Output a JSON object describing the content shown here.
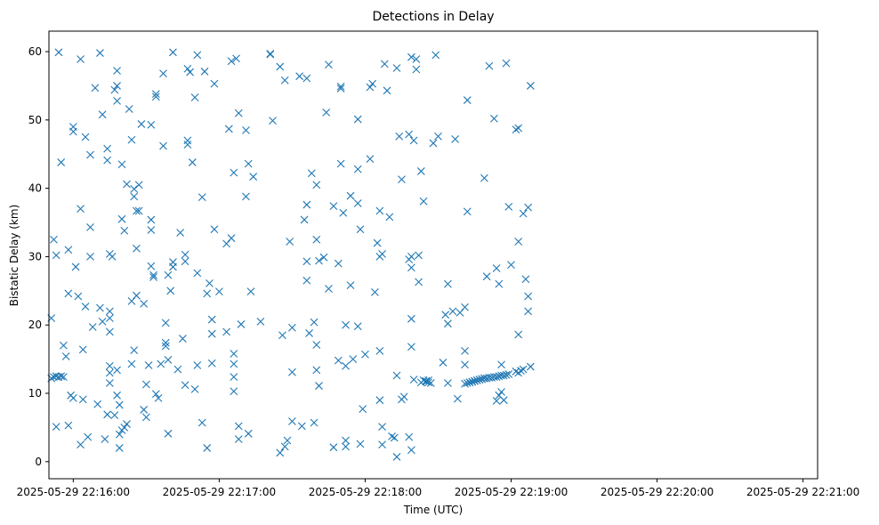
{
  "chart_data": {
    "type": "scatter",
    "title": "Detections in Delay",
    "xlabel": "Time (UTC)",
    "ylabel": "Bistatic Delay (km)",
    "marker": "x",
    "color": "#1f77b4",
    "grid": false,
    "xlim": [
      "2025-05-29 22:15:50",
      "2025-05-29 22:21:06"
    ],
    "ylim": [
      -2.5,
      63
    ],
    "xticks": [
      "2025-05-29 22:16:00",
      "2025-05-29 22:17:00",
      "2025-05-29 22:18:00",
      "2025-05-29 22:19:00",
      "2025-05-29 22:20:00",
      "2025-05-29 22:21:00"
    ],
    "yticks": [
      "0",
      "10",
      "20",
      "30",
      "40",
      "50",
      "60"
    ],
    "points": [
      [
        "22:15:51",
        21
      ],
      [
        "22:15:52",
        32.5
      ],
      [
        "22:15:53",
        30.2
      ],
      [
        "22:15:54",
        59.9
      ],
      [
        "22:15:55",
        43.8
      ],
      [
        "22:15:56",
        17
      ],
      [
        "22:15:57",
        15.4
      ],
      [
        "22:15:58",
        24.6
      ],
      [
        "22:15:58",
        31
      ],
      [
        "22:15:59",
        9.7
      ],
      [
        "22:16:00",
        9.3
      ],
      [
        "22:16:00",
        49
      ],
      [
        "22:16:00",
        48.3
      ],
      [
        "22:16:01",
        28.5
      ],
      [
        "22:16:02",
        24.2
      ],
      [
        "22:16:03",
        37
      ],
      [
        "22:16:03",
        58.9
      ],
      [
        "22:16:04",
        16.4
      ],
      [
        "22:16:04",
        9.1
      ],
      [
        "22:16:05",
        22.7
      ],
      [
        "22:16:05",
        47.5
      ],
      [
        "22:16:06",
        3.6
      ],
      [
        "22:16:07",
        30
      ],
      [
        "22:16:07",
        44.9
      ],
      [
        "22:16:07",
        34.3
      ],
      [
        "22:16:08",
        19.7
      ],
      [
        "22:16:09",
        54.7
      ],
      [
        "22:16:10",
        8.4
      ],
      [
        "22:16:11",
        59.8
      ],
      [
        "22:16:11",
        22.5
      ],
      [
        "22:16:12",
        50.8
      ],
      [
        "22:16:12",
        20.5
      ],
      [
        "22:16:13",
        3.3
      ],
      [
        "22:16:14",
        45.8
      ],
      [
        "22:16:14",
        44.1
      ],
      [
        "22:16:15",
        30.4
      ],
      [
        "22:16:15",
        22
      ],
      [
        "22:16:15",
        21
      ],
      [
        "22:16:15",
        19
      ],
      [
        "22:16:15",
        14
      ],
      [
        "22:16:15",
        13
      ],
      [
        "22:16:15",
        11.5
      ],
      [
        "22:16:16",
        30
      ],
      [
        "22:16:17",
        54.4
      ],
      [
        "22:16:18",
        57.2
      ],
      [
        "22:16:18",
        55
      ],
      [
        "22:16:18",
        52.8
      ],
      [
        "22:16:18",
        9.7
      ],
      [
        "22:16:19",
        2
      ],
      [
        "22:16:19",
        4
      ],
      [
        "22:16:19",
        8.3
      ],
      [
        "22:16:20",
        43.5
      ],
      [
        "22:16:20",
        35.5
      ],
      [
        "22:16:21",
        33.8
      ],
      [
        "22:16:22",
        40.6
      ],
      [
        "22:16:23",
        51.6
      ],
      [
        "22:16:24",
        47.1
      ],
      [
        "22:16:24",
        23.5
      ],
      [
        "22:16:25",
        39.9
      ],
      [
        "22:16:25",
        38.8
      ],
      [
        "22:16:26",
        36.7
      ],
      [
        "22:16:26",
        31.2
      ],
      [
        "22:16:26",
        24.3
      ],
      [
        "22:16:27",
        36.7
      ],
      [
        "22:16:27",
        40.5
      ],
      [
        "22:16:28",
        49.4
      ],
      [
        "22:16:29",
        23.1
      ],
      [
        "22:16:29",
        7.6
      ],
      [
        "22:16:30",
        6.5
      ],
      [
        "22:16:30",
        11.3
      ],
      [
        "22:16:31",
        14.1
      ],
      [
        "22:16:32",
        49.3
      ],
      [
        "22:16:32",
        35.4
      ],
      [
        "22:16:32",
        33.9
      ],
      [
        "22:16:32",
        28.6
      ],
      [
        "22:16:33",
        27.3
      ],
      [
        "22:16:33",
        27
      ],
      [
        "22:16:34",
        9.9
      ],
      [
        "22:16:34",
        53.8
      ],
      [
        "22:16:34",
        53.4
      ],
      [
        "22:16:35",
        9.3
      ],
      [
        "22:16:36",
        14.3
      ],
      [
        "22:16:37",
        46.2
      ],
      [
        "22:16:37",
        56.8
      ],
      [
        "22:16:38",
        17.4
      ],
      [
        "22:16:38",
        16.9
      ],
      [
        "22:16:38",
        20.3
      ],
      [
        "22:16:39",
        4.1
      ],
      [
        "22:16:39",
        14.9
      ],
      [
        "22:16:39",
        27.3
      ],
      [
        "22:16:40",
        25
      ],
      [
        "22:16:41",
        29.2
      ],
      [
        "22:16:41",
        59.9
      ],
      [
        "22:16:41",
        28.5
      ],
      [
        "22:16:43",
        13.5
      ],
      [
        "22:16:44",
        33.5
      ],
      [
        "22:16:45",
        18
      ],
      [
        "22:16:46",
        11.2
      ],
      [
        "22:16:46",
        30.3
      ],
      [
        "22:16:46",
        29.3
      ],
      [
        "22:16:47",
        57.5
      ],
      [
        "22:16:47",
        46.4
      ],
      [
        "22:16:47",
        47
      ],
      [
        "22:16:48",
        57
      ],
      [
        "22:16:49",
        43.8
      ],
      [
        "22:16:50",
        53.3
      ],
      [
        "22:16:50",
        10.6
      ],
      [
        "22:16:51",
        14.1
      ],
      [
        "22:16:51",
        27.6
      ],
      [
        "22:16:51",
        59.5
      ],
      [
        "22:16:53",
        38.7
      ],
      [
        "22:16:53",
        5.7
      ],
      [
        "22:16:54",
        57.1
      ],
      [
        "22:16:55",
        24.6
      ],
      [
        "22:16:55",
        2
      ],
      [
        "22:16:56",
        26.1
      ],
      [
        "22:16:57",
        20.8
      ],
      [
        "22:16:57",
        18.7
      ],
      [
        "22:16:57",
        14.4
      ],
      [
        "22:16:58",
        55.3
      ],
      [
        "22:16:58",
        34
      ],
      [
        "22:17:00",
        24.9
      ],
      [
        "22:17:03",
        31.9
      ],
      [
        "22:17:03",
        19
      ],
      [
        "22:17:04",
        48.7
      ],
      [
        "22:17:05",
        58.6
      ],
      [
        "22:17:05",
        32.7
      ],
      [
        "22:17:06",
        42.3
      ],
      [
        "22:17:06",
        15.8
      ],
      [
        "22:17:06",
        14.3
      ],
      [
        "22:17:06",
        12.4
      ],
      [
        "22:17:06",
        10.3
      ],
      [
        "22:17:07",
        59
      ],
      [
        "22:17:08",
        51
      ],
      [
        "22:17:08",
        5.2
      ],
      [
        "22:17:08",
        3.3
      ],
      [
        "22:17:09",
        20.1
      ],
      [
        "22:17:11",
        48.5
      ],
      [
        "22:17:11",
        38.8
      ],
      [
        "22:17:12",
        43.6
      ],
      [
        "22:17:12",
        4.1
      ],
      [
        "22:17:13",
        24.9
      ],
      [
        "22:17:14",
        41.7
      ],
      [
        "22:17:17",
        20.5
      ],
      [
        "22:17:21",
        59.7
      ],
      [
        "22:17:21",
        59.6
      ],
      [
        "22:17:22",
        49.9
      ],
      [
        "22:17:25",
        57.8
      ],
      [
        "22:17:25",
        1.3
      ],
      [
        "22:17:26",
        18.5
      ],
      [
        "22:17:27",
        55.8
      ],
      [
        "22:17:27",
        2.2
      ],
      [
        "22:17:28",
        3.1
      ],
      [
        "22:17:29",
        32.2
      ],
      [
        "22:17:30",
        19.6
      ],
      [
        "22:17:30",
        13.1
      ],
      [
        "22:17:30",
        5.9
      ],
      [
        "22:17:33",
        56.4
      ],
      [
        "22:17:34",
        5.2
      ],
      [
        "22:17:35",
        35.4
      ],
      [
        "22:17:36",
        56.1
      ],
      [
        "22:17:36",
        37.6
      ],
      [
        "22:17:36",
        29.3
      ],
      [
        "22:17:36",
        26.5
      ],
      [
        "22:17:37",
        18.8
      ],
      [
        "22:17:38",
        42.2
      ],
      [
        "22:17:39",
        20.4
      ],
      [
        "22:17:39",
        5.7
      ],
      [
        "22:17:40",
        40.5
      ],
      [
        "22:17:40",
        32.5
      ],
      [
        "22:17:40",
        17.1
      ],
      [
        "22:17:40",
        13.4
      ],
      [
        "22:17:41",
        29.4
      ],
      [
        "22:17:41",
        11.1
      ],
      [
        "22:17:43",
        29.9
      ],
      [
        "22:17:44",
        51.1
      ],
      [
        "22:17:45",
        58.1
      ],
      [
        "22:17:45",
        25.3
      ],
      [
        "22:17:47",
        37.4
      ],
      [
        "22:17:47",
        2.1
      ],
      [
        "22:17:49",
        29
      ],
      [
        "22:17:49",
        14.8
      ],
      [
        "22:17:50",
        54.9
      ],
      [
        "22:17:50",
        54.6
      ],
      [
        "22:17:50",
        43.6
      ],
      [
        "22:17:51",
        36.4
      ],
      [
        "22:17:52",
        20
      ],
      [
        "22:17:52",
        14
      ],
      [
        "22:17:52",
        3.1
      ],
      [
        "22:17:52",
        2.2
      ],
      [
        "22:17:54",
        38.9
      ],
      [
        "22:17:54",
        25.8
      ],
      [
        "22:17:55",
        15
      ],
      [
        "22:17:57",
        50.1
      ],
      [
        "22:17:57",
        42.8
      ],
      [
        "22:17:57",
        37.8
      ],
      [
        "22:17:57",
        19.8
      ],
      [
        "22:17:58",
        34
      ],
      [
        "22:17:58",
        2.6
      ],
      [
        "22:17:59",
        7.7
      ],
      [
        "22:18:00",
        15.7
      ],
      [
        "22:18:02",
        54.8
      ],
      [
        "22:18:02",
        44.3
      ],
      [
        "22:18:03",
        55.3
      ],
      [
        "22:18:04",
        24.8
      ],
      [
        "22:18:05",
        32
      ],
      [
        "22:18:06",
        36.7
      ],
      [
        "22:18:06",
        30
      ],
      [
        "22:18:06",
        16.2
      ],
      [
        "22:18:06",
        9
      ],
      [
        "22:18:07",
        5.1
      ],
      [
        "22:18:07",
        2.5
      ],
      [
        "22:18:07",
        30.4
      ],
      [
        "22:18:08",
        58.2
      ],
      [
        "22:18:09",
        54.3
      ],
      [
        "22:18:10",
        35.8
      ],
      [
        "22:18:11",
        3.7
      ],
      [
        "22:18:12",
        3.5
      ],
      [
        "22:18:13",
        57.6
      ],
      [
        "22:18:13",
        12.6
      ],
      [
        "22:18:13",
        0.7
      ],
      [
        "22:18:14",
        47.6
      ],
      [
        "22:18:15",
        9.1
      ],
      [
        "22:18:15",
        41.3
      ],
      [
        "22:18:16",
        9.5
      ],
      [
        "22:18:18",
        47.9
      ],
      [
        "22:18:18",
        29.6
      ],
      [
        "22:18:18",
        3.6
      ],
      [
        "22:18:19",
        59.2
      ],
      [
        "22:18:19",
        30
      ],
      [
        "22:18:19",
        28.4
      ],
      [
        "22:18:19",
        20.9
      ],
      [
        "22:18:19",
        16.8
      ],
      [
        "22:18:19",
        1.7
      ],
      [
        "22:18:20",
        47
      ],
      [
        "22:18:20",
        12
      ],
      [
        "22:18:21",
        58.9
      ],
      [
        "22:18:21",
        57.4
      ],
      [
        "22:18:22",
        30.2
      ],
      [
        "22:18:22",
        26.3
      ],
      [
        "22:18:23",
        11.6
      ],
      [
        "22:18:23",
        42.5
      ],
      [
        "22:18:24",
        38.1
      ],
      [
        "22:18:24",
        11.9
      ],
      [
        "22:18:25",
        11.8
      ],
      [
        "22:18:25",
        11.7
      ],
      [
        "22:18:26",
        11.6
      ],
      [
        "22:18:26",
        11.9
      ],
      [
        "22:18:27",
        11.5
      ],
      [
        "22:18:28",
        46.6
      ],
      [
        "22:18:29",
        59.5
      ],
      [
        "22:18:30",
        47.6
      ],
      [
        "22:18:32",
        14.5
      ],
      [
        "22:18:33",
        21.5
      ],
      [
        "22:18:34",
        26
      ],
      [
        "22:18:34",
        11.5
      ],
      [
        "22:18:34",
        20.2
      ],
      [
        "22:18:36",
        22
      ],
      [
        "22:18:37",
        47.2
      ],
      [
        "22:18:38",
        9.2
      ],
      [
        "22:18:39",
        21.8
      ],
      [
        "22:18:41",
        16.2
      ],
      [
        "22:18:41",
        14.2
      ],
      [
        "22:18:41",
        22.6
      ],
      [
        "22:18:41",
        11.4
      ],
      [
        "22:18:42",
        52.9
      ],
      [
        "22:18:42",
        36.6
      ],
      [
        "22:18:42",
        11.5
      ],
      [
        "22:18:43",
        11.6
      ],
      [
        "22:18:43",
        11.6
      ],
      [
        "22:18:44",
        11.7
      ],
      [
        "22:18:44",
        11.7
      ],
      [
        "22:18:45",
        11.8
      ],
      [
        "22:18:45",
        11.8
      ],
      [
        "22:18:46",
        11.9
      ],
      [
        "22:18:46",
        11.9
      ],
      [
        "22:18:47",
        12
      ],
      [
        "22:18:47",
        12
      ],
      [
        "22:18:48",
        12.1
      ],
      [
        "22:18:48",
        12.1
      ],
      [
        "22:18:49",
        12.2
      ],
      [
        "22:18:49",
        12.2
      ],
      [
        "22:18:49",
        41.5
      ],
      [
        "22:18:50",
        27.1
      ],
      [
        "22:18:50",
        12.2
      ],
      [
        "22:18:51",
        57.9
      ],
      [
        "22:18:51",
        12.3
      ],
      [
        "22:18:52",
        12.3
      ],
      [
        "22:18:53",
        50.2
      ],
      [
        "22:18:53",
        12.4
      ],
      [
        "22:18:54",
        12.4
      ],
      [
        "22:18:54",
        28.3
      ],
      [
        "22:18:54",
        8.9
      ],
      [
        "22:18:55",
        26
      ],
      [
        "22:18:55",
        12.5
      ],
      [
        "22:18:55",
        9.7
      ],
      [
        "22:18:56",
        10.2
      ],
      [
        "22:18:56",
        14.2
      ],
      [
        "22:18:56",
        12.6
      ],
      [
        "22:18:57",
        9
      ],
      [
        "22:18:57",
        12.6
      ],
      [
        "22:18:58",
        58.3
      ],
      [
        "22:18:58",
        12.7
      ],
      [
        "22:18:59",
        37.3
      ],
      [
        "22:18:59",
        12.8
      ],
      [
        "22:19:00",
        28.8
      ],
      [
        "22:19:02",
        13.2
      ],
      [
        "22:19:02",
        48.6
      ],
      [
        "22:19:03",
        48.8
      ],
      [
        "22:19:03",
        32.2
      ],
      [
        "22:19:03",
        18.6
      ],
      [
        "22:19:03",
        13
      ],
      [
        "22:19:04",
        13.3
      ],
      [
        "22:19:05",
        36.3
      ],
      [
        "22:19:05",
        13.5
      ],
      [
        "22:19:06",
        26.7
      ],
      [
        "22:19:07",
        24.2
      ],
      [
        "22:19:07",
        22
      ],
      [
        "22:19:07",
        37.2
      ],
      [
        "22:19:08",
        55
      ],
      [
        "22:19:08",
        13.9
      ],
      [
        "22:15:51",
        12.2
      ],
      [
        "22:15:52",
        12.4
      ],
      [
        "22:15:53",
        12.5
      ],
      [
        "22:15:54",
        12.4
      ],
      [
        "22:15:55",
        12.5
      ],
      [
        "22:15:56",
        12.4
      ],
      [
        "22:15:53",
        5.1
      ],
      [
        "22:15:58",
        5.3
      ],
      [
        "22:16:03",
        2.5
      ],
      [
        "22:16:14",
        6.9
      ],
      [
        "22:16:17",
        6.8
      ],
      [
        "22:16:20",
        4.6
      ],
      [
        "22:16:21",
        5
      ],
      [
        "22:16:22",
        5.5
      ],
      [
        "22:16:18",
        13.4
      ],
      [
        "22:16:24",
        14.3
      ],
      [
        "22:16:25",
        16.3
      ]
    ]
  }
}
